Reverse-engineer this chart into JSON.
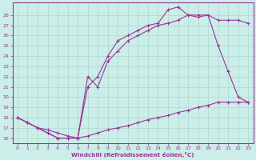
{
  "bg_color": "#cceee8",
  "line_color": "#993399",
  "grid_color": "#aad8d0",
  "xlabel": "Windchill (Refroidissement éolien,°C)",
  "xlim": [
    -0.5,
    23.5
  ],
  "ylim": [
    15.5,
    29.2
  ],
  "yticks": [
    16,
    17,
    18,
    19,
    20,
    21,
    22,
    23,
    24,
    25,
    26,
    27,
    28
  ],
  "xticks": [
    0,
    1,
    2,
    3,
    4,
    5,
    6,
    7,
    8,
    9,
    10,
    11,
    12,
    13,
    14,
    15,
    16,
    17,
    18,
    19,
    20,
    21,
    22,
    23
  ],
  "line1_x": [
    0,
    1,
    2,
    3,
    4,
    5,
    6,
    7,
    8,
    9,
    10,
    11,
    12,
    13,
    14,
    15,
    16,
    17,
    18,
    19,
    20,
    21,
    22,
    23
  ],
  "line1_y": [
    18,
    17.5,
    17,
    16.8,
    16.5,
    16.2,
    16,
    16.2,
    16.5,
    16.8,
    17,
    17.2,
    17.5,
    17.8,
    18,
    18.2,
    18.5,
    18.7,
    19,
    19.2,
    19.5,
    19.5,
    19.5,
    19.5
  ],
  "line2_x": [
    0,
    1,
    2,
    3,
    4,
    5,
    6,
    7,
    8,
    9,
    10,
    11,
    12,
    13,
    14,
    15,
    16,
    17,
    18,
    19,
    20,
    21,
    22,
    23
  ],
  "line2_y": [
    18,
    17.5,
    17,
    16.5,
    16,
    16,
    16,
    22,
    21,
    23.5,
    24.5,
    25.5,
    26,
    26.5,
    27,
    27.2,
    27.5,
    28,
    28,
    28,
    25,
    22.5,
    20,
    19.5
  ],
  "line3_x": [
    0,
    1,
    2,
    3,
    4,
    5,
    6,
    7,
    8,
    9,
    10,
    11,
    12,
    13,
    14,
    15,
    16,
    17,
    18,
    19,
    20,
    21,
    22,
    23
  ],
  "line3_y": [
    18,
    17.5,
    17,
    16.5,
    16,
    16,
    16,
    21,
    22,
    24,
    25.5,
    26,
    26.5,
    27,
    27.2,
    28.5,
    28.8,
    28,
    27.8,
    28,
    27.5,
    27.5,
    27.5,
    27.2
  ]
}
